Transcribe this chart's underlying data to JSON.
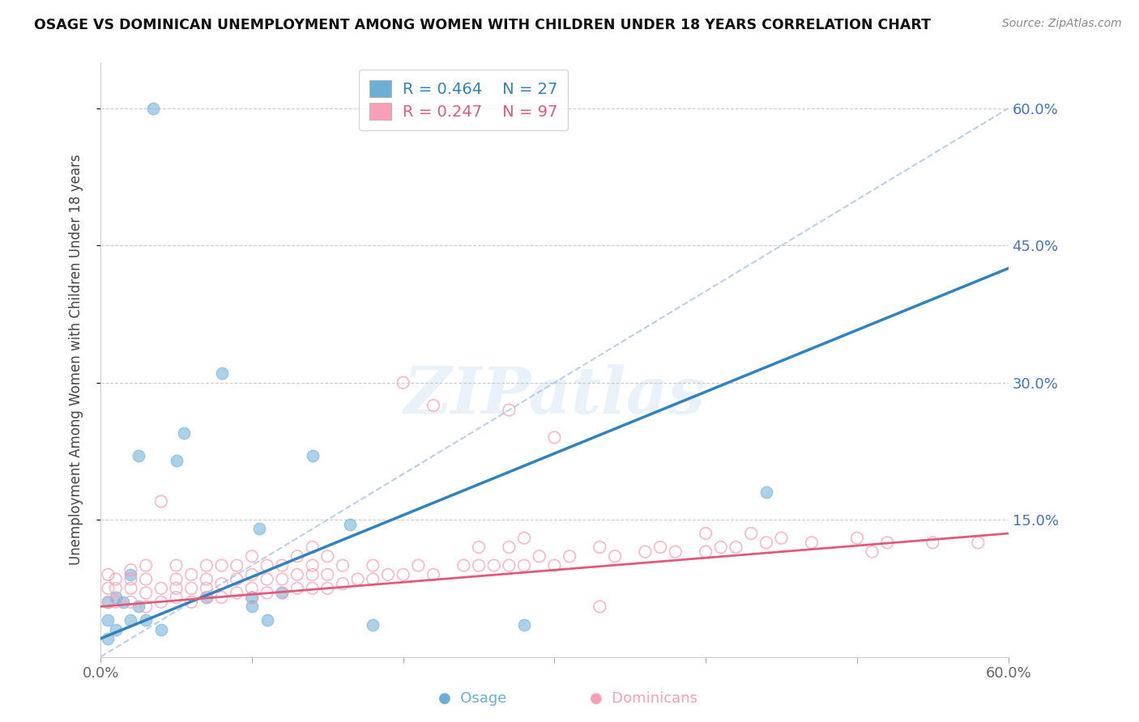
{
  "title": "OSAGE VS DOMINICAN UNEMPLOYMENT AMONG WOMEN WITH CHILDREN UNDER 18 YEARS CORRELATION CHART",
  "source": "Source: ZipAtlas.com",
  "ylabel": "Unemployment Among Women with Children Under 18 years",
  "ytick_labels": [
    "60.0%",
    "45.0%",
    "30.0%",
    "15.0%"
  ],
  "ytick_values": [
    0.6,
    0.45,
    0.3,
    0.15
  ],
  "xlim": [
    0.0,
    0.6
  ],
  "ylim": [
    0.0,
    0.65
  ],
  "osage_color": "#6baed6",
  "dominican_color": "#fa9fb5",
  "osage_R": 0.464,
  "osage_N": 27,
  "dominican_R": 0.247,
  "dominican_N": 97,
  "osage_line_color": "#3182bd",
  "dominican_line_color": "#e05a7a",
  "dashed_line_color": "#b0c8e0",
  "watermark_text": "ZIPatlas",
  "osage_line_x0": 0.0,
  "osage_line_y0": 0.02,
  "osage_line_x1": 0.6,
  "osage_line_y1": 0.425,
  "dominican_line_x0": 0.0,
  "dominican_line_y0": 0.055,
  "dominican_line_x1": 0.6,
  "dominican_line_y1": 0.135,
  "dashed_line_x0": 0.0,
  "dashed_line_y0": 0.0,
  "dashed_line_x1": 0.6,
  "dashed_line_y1": 0.6,
  "osage_x": [
    0.005,
    0.005,
    0.005,
    0.01,
    0.01,
    0.015,
    0.02,
    0.02,
    0.025,
    0.025,
    0.03,
    0.035,
    0.04,
    0.05,
    0.055,
    0.07,
    0.08,
    0.1,
    0.1,
    0.105,
    0.11,
    0.12,
    0.14,
    0.165,
    0.18,
    0.28,
    0.44
  ],
  "osage_y": [
    0.02,
    0.04,
    0.06,
    0.03,
    0.065,
    0.06,
    0.04,
    0.09,
    0.055,
    0.22,
    0.04,
    0.6,
    0.03,
    0.215,
    0.245,
    0.065,
    0.31,
    0.055,
    0.065,
    0.14,
    0.04,
    0.07,
    0.22,
    0.145,
    0.035,
    0.035,
    0.18
  ],
  "dominican_x": [
    0.005,
    0.005,
    0.005,
    0.01,
    0.01,
    0.01,
    0.02,
    0.02,
    0.02,
    0.02,
    0.03,
    0.03,
    0.03,
    0.03,
    0.04,
    0.04,
    0.04,
    0.05,
    0.05,
    0.05,
    0.05,
    0.06,
    0.06,
    0.06,
    0.07,
    0.07,
    0.07,
    0.07,
    0.08,
    0.08,
    0.08,
    0.09,
    0.09,
    0.09,
    0.1,
    0.1,
    0.1,
    0.1,
    0.11,
    0.11,
    0.11,
    0.12,
    0.12,
    0.12,
    0.13,
    0.13,
    0.13,
    0.14,
    0.14,
    0.14,
    0.14,
    0.15,
    0.15,
    0.15,
    0.16,
    0.16,
    0.17,
    0.18,
    0.18,
    0.19,
    0.2,
    0.2,
    0.21,
    0.22,
    0.22,
    0.24,
    0.25,
    0.25,
    0.26,
    0.27,
    0.27,
    0.27,
    0.28,
    0.28,
    0.29,
    0.3,
    0.3,
    0.31,
    0.33,
    0.33,
    0.34,
    0.36,
    0.37,
    0.38,
    0.4,
    0.4,
    0.41,
    0.42,
    0.43,
    0.44,
    0.45,
    0.47,
    0.5,
    0.51,
    0.52,
    0.55,
    0.58
  ],
  "dominican_y": [
    0.06,
    0.075,
    0.09,
    0.06,
    0.075,
    0.085,
    0.06,
    0.075,
    0.085,
    0.095,
    0.055,
    0.07,
    0.085,
    0.1,
    0.06,
    0.075,
    0.17,
    0.065,
    0.075,
    0.085,
    0.1,
    0.06,
    0.075,
    0.09,
    0.065,
    0.075,
    0.085,
    0.1,
    0.065,
    0.08,
    0.1,
    0.07,
    0.085,
    0.1,
    0.065,
    0.075,
    0.09,
    0.11,
    0.07,
    0.085,
    0.1,
    0.07,
    0.085,
    0.1,
    0.075,
    0.09,
    0.11,
    0.075,
    0.09,
    0.1,
    0.12,
    0.075,
    0.09,
    0.11,
    0.08,
    0.1,
    0.085,
    0.085,
    0.1,
    0.09,
    0.09,
    0.3,
    0.1,
    0.09,
    0.275,
    0.1,
    0.1,
    0.12,
    0.1,
    0.1,
    0.12,
    0.27,
    0.1,
    0.13,
    0.11,
    0.1,
    0.24,
    0.11,
    0.055,
    0.12,
    0.11,
    0.115,
    0.12,
    0.115,
    0.115,
    0.135,
    0.12,
    0.12,
    0.135,
    0.125,
    0.13,
    0.125,
    0.13,
    0.115,
    0.125,
    0.125,
    0.125
  ]
}
